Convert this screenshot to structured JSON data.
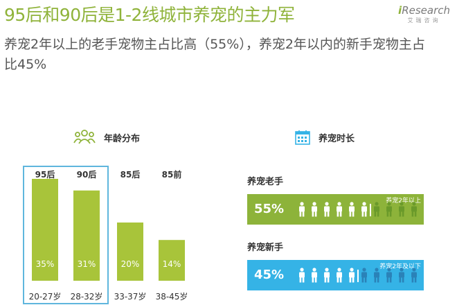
{
  "title": "95后和90后是1-2线城市养宠的主力军",
  "logo": {
    "main": "Research",
    "accent": "i",
    "sub": "艾瑞咨询"
  },
  "subtitle": "养宠2年以上的老手宠物主占比高（55%），养宠2年以内的新手宠物主占比45%",
  "sections": {
    "age": {
      "label": "年龄分布",
      "icon": "people-group-icon"
    },
    "duration": {
      "label": "养宠时长",
      "icon": "calendar-icon"
    }
  },
  "chart_data": [
    {
      "type": "bar",
      "title": "年龄分布",
      "categories": [
        "95后",
        "90后",
        "85后",
        "85前"
      ],
      "age_ranges": [
        "20-27岁",
        "28-32岁",
        "33-37岁",
        "38-45岁"
      ],
      "values": [
        35,
        31,
        20,
        14
      ],
      "value_labels": [
        "35%",
        "31%",
        "20%",
        "14%"
      ],
      "highlighted": [
        "95后",
        "90后"
      ],
      "color": "#a8c43a",
      "highlight_border": "#5fb6dd"
    },
    {
      "type": "bar",
      "title": "养宠时长",
      "series": [
        {
          "name": "养宠老手",
          "value": 55,
          "label": "55%",
          "desc": "养宠2年以上",
          "color": "#8db33a",
          "icon_color": "#6a9a2a"
        },
        {
          "name": "养宠新手",
          "value": 45,
          "label": "45%",
          "desc": "养宠2年及以下",
          "color": "#35b3e6",
          "icon_color": "#2a82b8"
        }
      ]
    }
  ]
}
